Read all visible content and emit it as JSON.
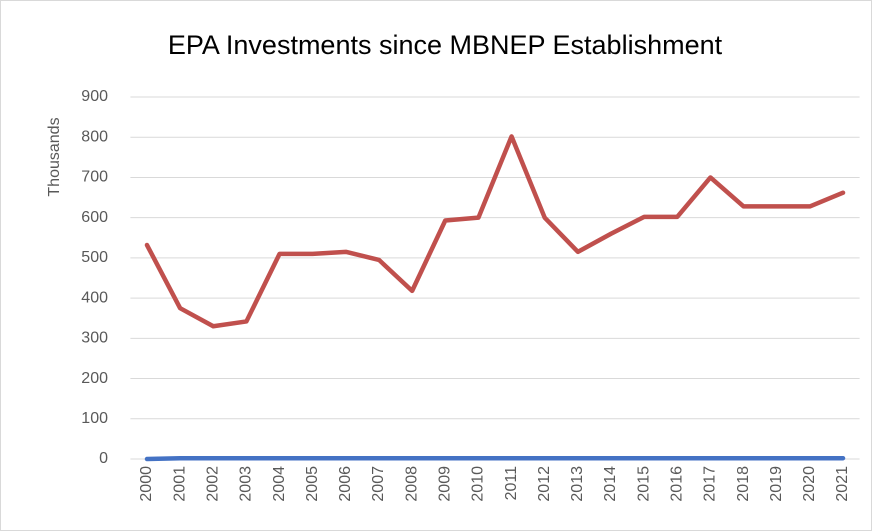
{
  "chart_data": {
    "type": "line",
    "title": "EPA Investments since MBNEP Establishment",
    "y_label": "Thousands",
    "categories": [
      "2000",
      "2001",
      "2002",
      "2003",
      "2004",
      "2005",
      "2006",
      "2007",
      "2008",
      "2009",
      "2010",
      "2011",
      "2012",
      "2013",
      "2014",
      "2015",
      "2016",
      "2017",
      "2018",
      "2019",
      "2020",
      "2021"
    ],
    "series": [
      {
        "color": "#4472c4",
        "values": [
          0,
          2,
          2,
          2,
          2,
          2,
          2,
          2,
          2,
          2,
          2,
          2,
          2,
          2,
          2,
          2,
          2,
          2,
          2,
          2,
          2,
          2
        ]
      },
      {
        "color": "#c0504d",
        "values": [
          532,
          375,
          330,
          342,
          510,
          510,
          515,
          495,
          418,
          593,
          600,
          802,
          600,
          515,
          560,
          602,
          602,
          700,
          628,
          628,
          628,
          662
        ]
      }
    ],
    "ylim": [
      0,
      900
    ],
    "yticks": [
      0,
      100,
      200,
      300,
      400,
      500,
      600,
      700,
      800,
      900
    ],
    "grid": true
  }
}
